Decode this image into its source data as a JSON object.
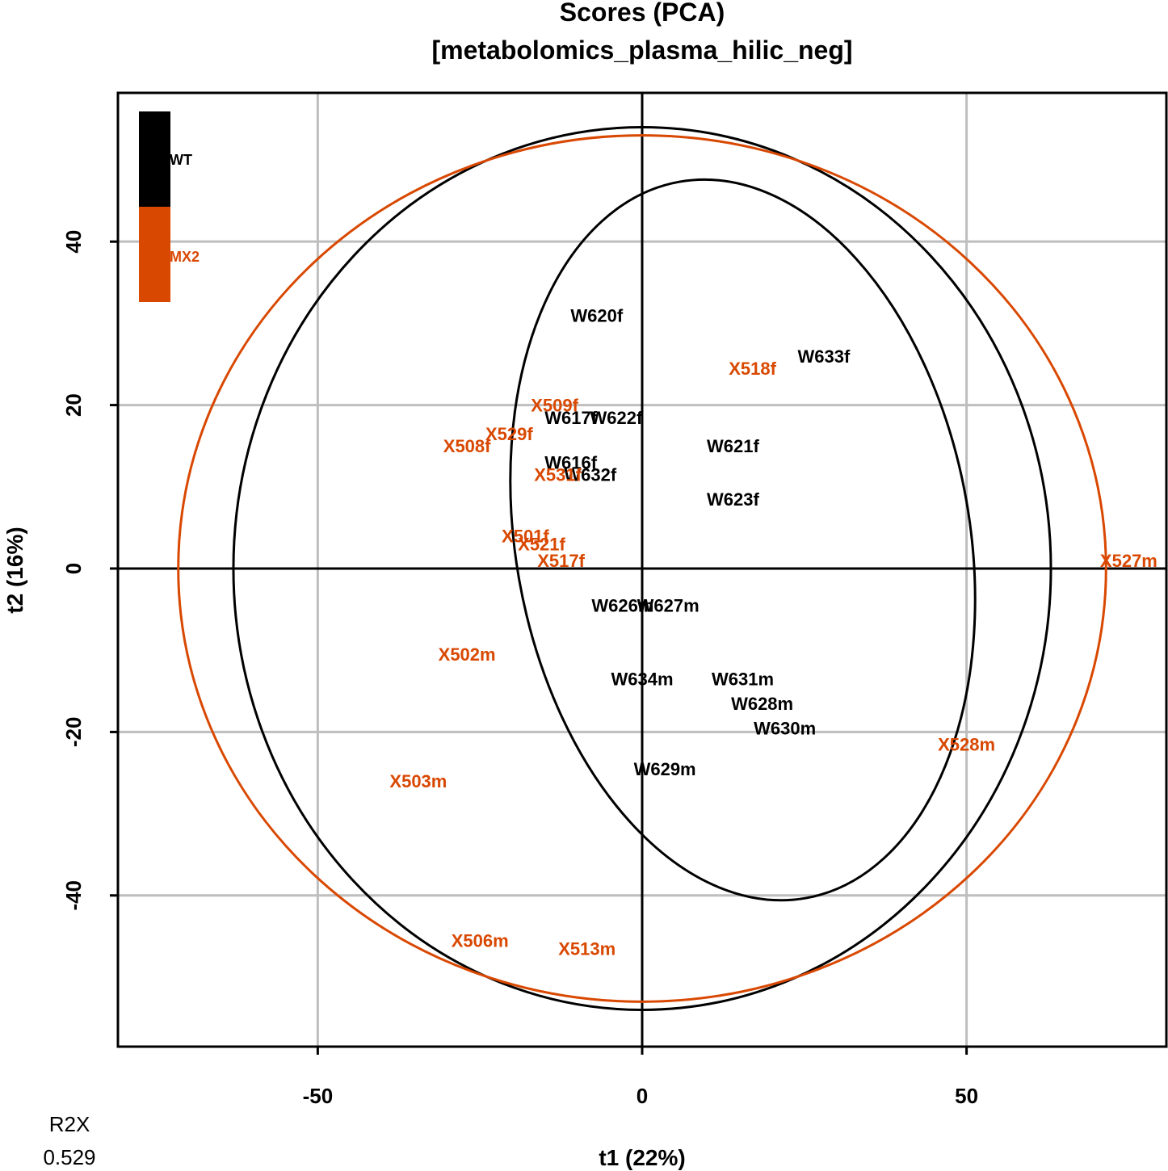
{
  "chart_data": {
    "type": "scatter",
    "title": "Scores (PCA)",
    "subtitle": "[metabolomics_plasma_hilic_neg]",
    "xlabel": "t1 (22%)",
    "ylabel": "t2 (16%)",
    "xlim": [
      -80.8,
      80.8
    ],
    "ylim": [
      -58.5,
      58.2
    ],
    "xticks": [
      -50,
      0,
      50
    ],
    "yticks": [
      -40,
      -20,
      0,
      20,
      40
    ],
    "grid": true,
    "legend_position": "top-left",
    "colors": {
      "WT": "#000000",
      "MX2": "#d94801",
      "grid": "#bebebe"
    },
    "r2x": {
      "label": "R2X",
      "value": "0.529"
    },
    "series": [
      {
        "name": "WT",
        "points": [
          {
            "label": "W620f",
            "x": -7,
            "y": 31
          },
          {
            "label": "W633f",
            "x": 28,
            "y": 26
          },
          {
            "label": "W617f",
            "x": -11,
            "y": 18.5
          },
          {
            "label": "W622f",
            "x": -4,
            "y": 18.5
          },
          {
            "label": "W621f",
            "x": 14,
            "y": 15
          },
          {
            "label": "W616f",
            "x": -11,
            "y": 13
          },
          {
            "label": "W632f",
            "x": -8,
            "y": 11.5
          },
          {
            "label": "W623f",
            "x": 14,
            "y": 8.5
          },
          {
            "label": "W626m",
            "x": -3,
            "y": -4.5
          },
          {
            "label": "W627m",
            "x": 4,
            "y": -4.5
          },
          {
            "label": "W634m",
            "x": 0,
            "y": -13.5
          },
          {
            "label": "W631m",
            "x": 15.5,
            "y": -13.5
          },
          {
            "label": "W628m",
            "x": 18.5,
            "y": -16.5
          },
          {
            "label": "W630m",
            "x": 22,
            "y": -19.5
          },
          {
            "label": "W629m",
            "x": 3.5,
            "y": -24.5
          }
        ]
      },
      {
        "name": "MX2",
        "points": [
          {
            "label": "X518f",
            "x": 17,
            "y": 24.5
          },
          {
            "label": "X509f",
            "x": -13.5,
            "y": 20
          },
          {
            "label": "X529f",
            "x": -20.5,
            "y": 16.5
          },
          {
            "label": "X508f",
            "x": -27,
            "y": 15
          },
          {
            "label": "X531f",
            "x": -13,
            "y": 11.5
          },
          {
            "label": "X501f",
            "x": -18,
            "y": 4
          },
          {
            "label": "X521f",
            "x": -15.5,
            "y": 3
          },
          {
            "label": "X517f",
            "x": -12.5,
            "y": 1
          },
          {
            "label": "X527m",
            "x": 75,
            "y": 1
          },
          {
            "label": "X502m",
            "x": -27,
            "y": -10.5
          },
          {
            "label": "X528m",
            "x": 50,
            "y": -21.5
          },
          {
            "label": "X503m",
            "x": -34.5,
            "y": -26
          },
          {
            "label": "X506m",
            "x": -25,
            "y": -45.5
          },
          {
            "label": "X513m",
            "x": -8.5,
            "y": -46.5
          }
        ]
      }
    ],
    "ellipses": [
      {
        "series": "WT",
        "cx": 15.5,
        "cy": 3.5,
        "rx": 35,
        "ry": 44.5,
        "rotate": -10
      },
      {
        "series": "WT",
        "cx": 0,
        "cy": 0,
        "rx": 63,
        "ry": 54
      },
      {
        "series": "MX2",
        "cx": 0,
        "cy": 0,
        "rx": 71.5,
        "ry": 53
      }
    ]
  }
}
